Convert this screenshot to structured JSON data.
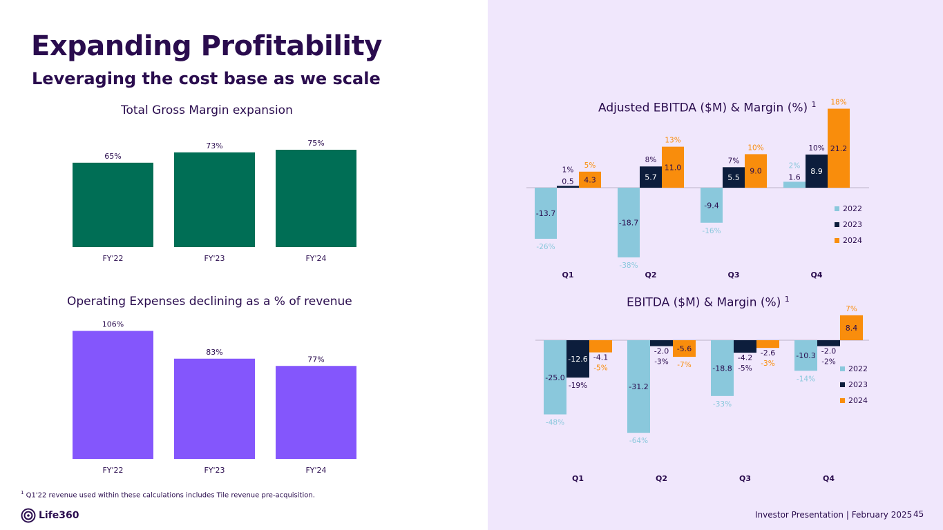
{
  "page": {
    "title": "Expanding Profitability",
    "subtitle": "Leveraging the cost base as we scale",
    "footnote_marker": "1",
    "footnote": "Q1'22 revenue used within these calculations includes Tile revenue pre-acquisition.",
    "logo_text": "Life360",
    "footer_text": "Investor Presentation  |  February 2025",
    "page_number": "45"
  },
  "colors": {
    "purple_dark": "#2a0c4e",
    "green": "#006e55",
    "violet": "#8456fc",
    "c2022": "#8ac8dc",
    "c2023": "#0c1d3c",
    "c2024": "#f98d0c",
    "panel": "#f0e7fc"
  },
  "chart_data": [
    {
      "id": "gross_margin",
      "type": "bar",
      "title": "Total Gross Margin expansion",
      "categories": [
        "FY'22",
        "FY'23",
        "FY'24"
      ],
      "values": [
        65,
        73,
        75
      ],
      "labels": [
        "65%",
        "73%",
        "75%"
      ],
      "unit": "%"
    },
    {
      "id": "opex",
      "type": "bar",
      "title": "Operating Expenses declining as a % of revenue",
      "categories": [
        "FY'22",
        "FY'23",
        "FY'24"
      ],
      "values": [
        106,
        83,
        77
      ],
      "labels": [
        "106%",
        "83%",
        "77%"
      ],
      "unit": "%"
    },
    {
      "id": "adj_ebitda",
      "type": "bar",
      "title": "Adjusted EBITDA ($M) & Margin (%)",
      "title_marker": "1",
      "categories": [
        "Q1",
        "Q2",
        "Q3",
        "Q4"
      ],
      "legend_position": "right",
      "series": [
        {
          "name": "2022",
          "values": [
            -13.7,
            -18.7,
            -9.4,
            1.6
          ],
          "labels": [
            "-13.7",
            "-18.7",
            "-9.4",
            "1.6"
          ],
          "margins": [
            "-26%",
            "-38%",
            "-16%",
            "2%"
          ]
        },
        {
          "name": "2023",
          "values": [
            0.5,
            5.7,
            5.5,
            8.9
          ],
          "labels": [
            "0.5",
            "5.7",
            "5.5",
            "8.9"
          ],
          "margins": [
            "1%",
            "8%",
            "7%",
            "10%"
          ]
        },
        {
          "name": "2024",
          "values": [
            4.3,
            11.0,
            9.0,
            21.2
          ],
          "labels": [
            "4.3",
            "11.0",
            "9.0",
            "21.2"
          ],
          "margins": [
            "5%",
            "13%",
            "10%",
            "18%"
          ]
        }
      ]
    },
    {
      "id": "ebitda",
      "type": "bar",
      "title": "EBITDA ($M) & Margin (%)",
      "title_marker": "1",
      "categories": [
        "Q1",
        "Q2",
        "Q3",
        "Q4"
      ],
      "legend_position": "right",
      "series": [
        {
          "name": "2022",
          "values": [
            -25.0,
            -31.2,
            -18.8,
            -10.3
          ],
          "labels": [
            "-25.0",
            "-31.2",
            "-18.8",
            "-10.3"
          ],
          "margins": [
            "-48%",
            "-64%",
            "-33%",
            "-14%"
          ]
        },
        {
          "name": "2023",
          "values": [
            -12.6,
            -2.0,
            -4.2,
            -2.0
          ],
          "labels": [
            "-12.6",
            "-2.0",
            "-4.2",
            "-2.0"
          ],
          "margins": [
            "-19%",
            "-3%",
            "-5%",
            "-2%"
          ]
        },
        {
          "name": "2024",
          "values": [
            -4.1,
            -5.6,
            -2.6,
            8.4
          ],
          "labels": [
            "-4.1",
            "-5.6",
            "-2.6",
            "8.4"
          ],
          "margins": [
            "-5%",
            "-7%",
            "-3%",
            "7%"
          ]
        }
      ]
    }
  ]
}
